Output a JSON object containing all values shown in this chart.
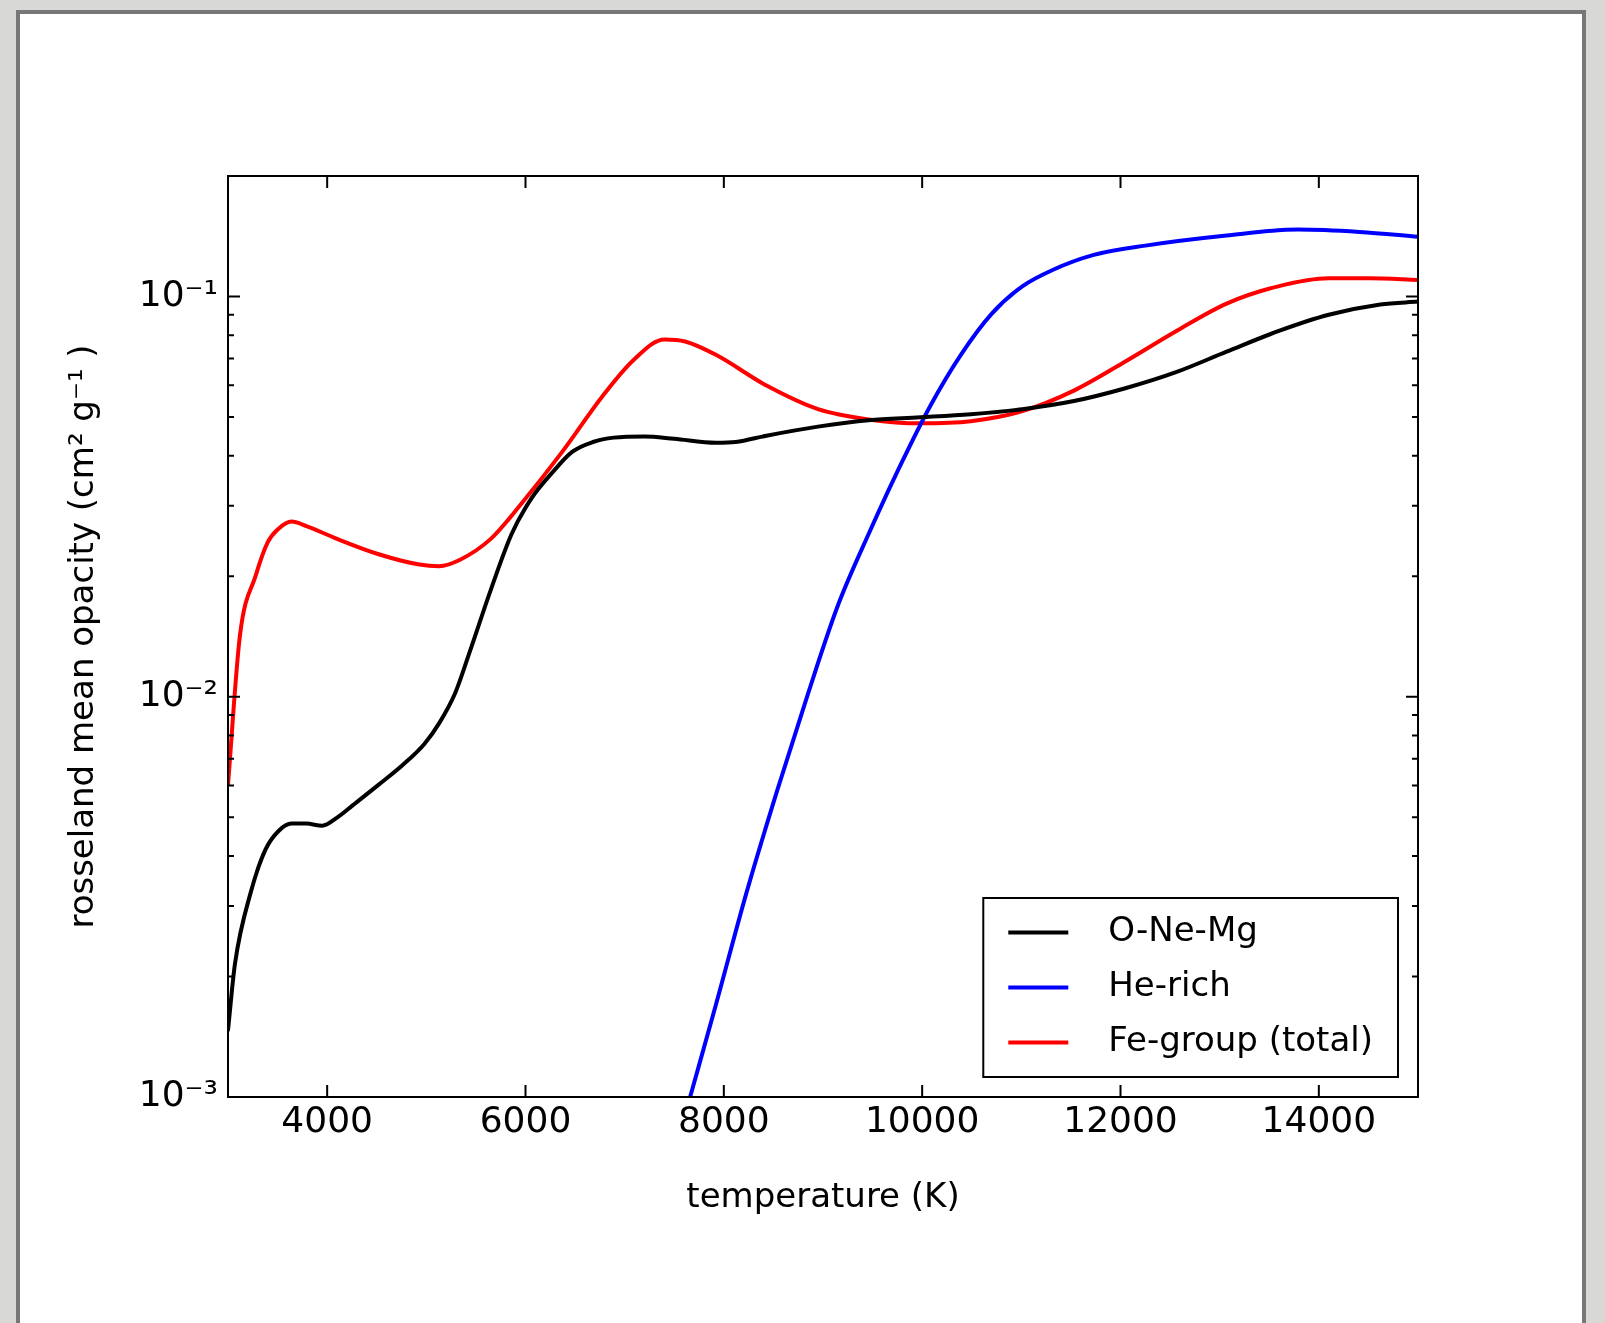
{
  "chart_data": {
    "type": "line",
    "xlabel": "temperature (K)",
    "ylabel": "rosseland mean opacity (cm² g⁻¹ )",
    "xlim": [
      3000,
      15000
    ],
    "xticks": [
      4000,
      6000,
      8000,
      10000,
      12000,
      14000
    ],
    "ylim": [
      0.001,
      0.2
    ],
    "log": "y",
    "yticks": [
      {
        "value": 0.001,
        "label": "10⁻³"
      },
      {
        "value": 0.002,
        "label": null
      },
      {
        "value": 0.003,
        "label": null
      },
      {
        "value": 0.004,
        "label": null
      },
      {
        "value": 0.005,
        "label": null
      },
      {
        "value": 0.006,
        "label": null
      },
      {
        "value": 0.007,
        "label": null
      },
      {
        "value": 0.008,
        "label": null
      },
      {
        "value": 0.009,
        "label": null
      },
      {
        "value": 0.01,
        "label": "10⁻²"
      },
      {
        "value": 0.02,
        "label": null
      },
      {
        "value": 0.03,
        "label": null
      },
      {
        "value": 0.04,
        "label": null
      },
      {
        "value": 0.05,
        "label": null
      },
      {
        "value": 0.06,
        "label": null
      },
      {
        "value": 0.07,
        "label": null
      },
      {
        "value": 0.08,
        "label": null
      },
      {
        "value": 0.09,
        "label": null
      },
      {
        "value": 0.1,
        "label": "10⁻¹"
      },
      {
        "value": 0.2,
        "label": null
      }
    ],
    "grid": false,
    "legend": "bottom right",
    "marker": "none",
    "line_style": "solid",
    "series": [
      {
        "name": "O-Ne-Mg",
        "color": "#000000",
        "x": [
          3000,
          3070,
          3230,
          3380,
          3510,
          3640,
          3790,
          3950,
          4100,
          4260,
          4520,
          4770,
          4980,
          5130,
          5290,
          5440,
          5650,
          5860,
          6060,
          6270,
          6470,
          6680,
          6890,
          7200,
          7500,
          7920,
          8120,
          8430,
          8950,
          9460,
          9980,
          10490,
          11010,
          11530,
          12040,
          12560,
          13070,
          13590,
          14100,
          14620,
          15000
        ],
        "values": [
          0.00147,
          0.00215,
          0.00325,
          0.00416,
          0.00462,
          0.00482,
          0.00482,
          0.00476,
          0.00499,
          0.00536,
          0.00603,
          0.00678,
          0.00762,
          0.00859,
          0.0102,
          0.013,
          0.0185,
          0.0255,
          0.0313,
          0.0363,
          0.0409,
          0.0433,
          0.0444,
          0.0447,
          0.0441,
          0.0431,
          0.0433,
          0.0449,
          0.0473,
          0.0491,
          0.0499,
          0.0508,
          0.0523,
          0.0548,
          0.0589,
          0.0647,
          0.0728,
          0.0819,
          0.09,
          0.0955,
          0.0971
        ]
      },
      {
        "name": "He-rich",
        "color": "#0000ff",
        "x": [
          7660,
          7920,
          8230,
          8540,
          8850,
          9150,
          9460,
          9770,
          10080,
          10390,
          10700,
          11010,
          11320,
          11730,
          12250,
          13070,
          13790,
          14410,
          15000
        ],
        "values": [
          0.001,
          0.0017,
          0.00325,
          0.00585,
          0.0102,
          0.0169,
          0.0255,
          0.0374,
          0.0532,
          0.0715,
          0.0905,
          0.106,
          0.1166,
          0.127,
          0.134,
          0.142,
          0.147,
          0.145,
          0.141
        ]
      },
      {
        "name": "Fe-group (total)",
        "color": "#ff0000",
        "x": [
          3000,
          3120,
          3280,
          3400,
          3510,
          3640,
          3790,
          4100,
          4520,
          4930,
          5130,
          5340,
          5650,
          5960,
          6370,
          6780,
          7090,
          7400,
          7610,
          7920,
          8430,
          8950,
          9460,
          9980,
          10490,
          11010,
          11530,
          12040,
          12560,
          13070,
          13590,
          14100,
          14510,
          15000
        ],
        "values": [
          0.00603,
          0.0142,
          0.0201,
          0.0243,
          0.0263,
          0.0274,
          0.0267,
          0.0248,
          0.0227,
          0.0214,
          0.0212,
          0.022,
          0.0248,
          0.0304,
          0.0409,
          0.0565,
          0.0694,
          0.0781,
          0.0772,
          0.0715,
          0.0599,
          0.0523,
          0.0493,
          0.0482,
          0.0488,
          0.0517,
          0.0582,
          0.0686,
          0.0819,
          0.096,
          0.106,
          0.111,
          0.111,
          0.11
        ]
      }
    ]
  }
}
